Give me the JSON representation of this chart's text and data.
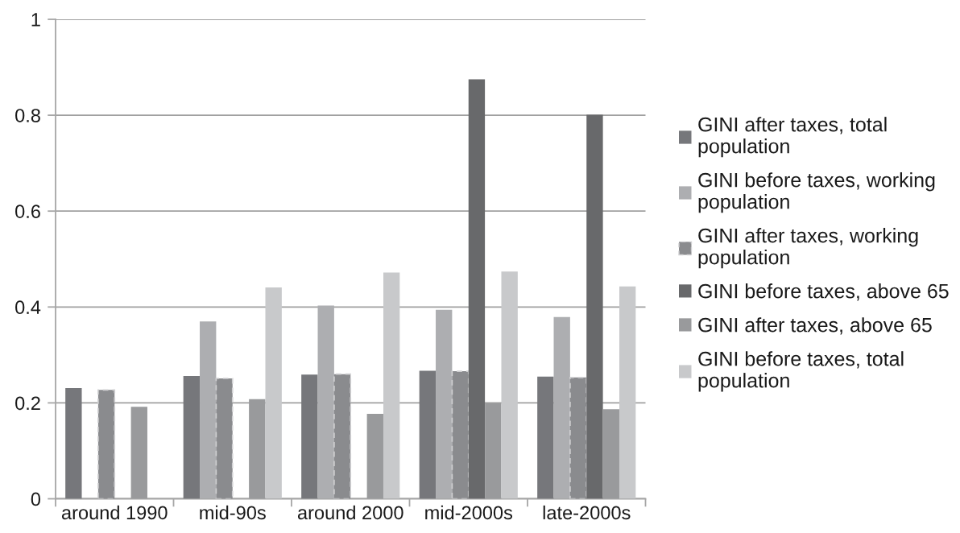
{
  "chart_data": {
    "type": "bar",
    "categories": [
      "around 1990",
      "mid-90s",
      "around 2000",
      "mid-2000s",
      "late-2000s"
    ],
    "series": [
      {
        "name": "GINI after taxes, total population",
        "color": "#76777b",
        "values": [
          0.231,
          0.256,
          0.259,
          0.267,
          0.255
        ]
      },
      {
        "name": "GINI before taxes, working population",
        "color": "#adaeb1",
        "values": [
          null,
          0.37,
          0.403,
          0.394,
          0.379
        ]
      },
      {
        "name": "GINI after taxes, working population",
        "color": "#8a8b8e",
        "line_style": "dashed",
        "values": [
          0.227,
          0.251,
          0.26,
          0.266,
          0.253
        ]
      },
      {
        "name": "GINI before taxes, above 65",
        "color": "#68696b",
        "values": [
          null,
          null,
          null,
          0.875,
          0.801
        ]
      },
      {
        "name": "GINI after taxes, above 65",
        "color": "#999a9c",
        "values": [
          0.192,
          0.208,
          0.177,
          0.199,
          0.187
        ]
      },
      {
        "name": "GINI before taxes, total population",
        "color": "#c8c9cb",
        "values": [
          null,
          0.441,
          0.472,
          0.474,
          0.443
        ]
      }
    ],
    "ylim": [
      0,
      1
    ],
    "yticks": [
      0,
      0.2,
      0.4,
      0.6,
      0.8,
      1
    ],
    "grid": "y",
    "legend": "right"
  }
}
